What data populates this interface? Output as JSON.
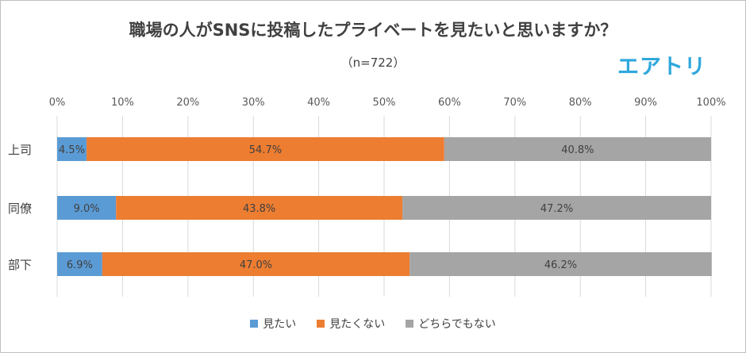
{
  "title": "職場の人がSNSに投稿したプライベートを見たいと思いますか？",
  "subtitle": "（n=722）",
  "brand": {
    "logo_text": "エアトリ",
    "color": "#2fa8dc"
  },
  "chart_data": {
    "type": "bar",
    "orientation": "horizontal",
    "stacked": "percent",
    "categories": [
      "上司",
      "同僚",
      "部下"
    ],
    "series": [
      {
        "name": "見たい",
        "color": "#5b9bd5",
        "values": [
          4.5,
          9.0,
          6.9
        ],
        "labels": [
          "4.5%",
          "9.0%",
          "6.9%"
        ]
      },
      {
        "name": "見たくない",
        "color": "#ed7d31",
        "values": [
          54.7,
          43.8,
          47.0
        ],
        "labels": [
          "54.7%",
          "43.8%",
          "47.0%"
        ]
      },
      {
        "name": "どちらでもない",
        "color": "#a5a5a5",
        "values": [
          40.8,
          47.2,
          46.2
        ],
        "labels": [
          "40.8%",
          "47.2%",
          "46.2%"
        ]
      }
    ],
    "xlim": [
      0,
      100
    ],
    "x_ticks": [
      "0%",
      "10%",
      "20%",
      "30%",
      "40%",
      "50%",
      "60%",
      "70%",
      "80%",
      "90%",
      "100%"
    ],
    "grid": true,
    "legend_position": "bottom"
  }
}
